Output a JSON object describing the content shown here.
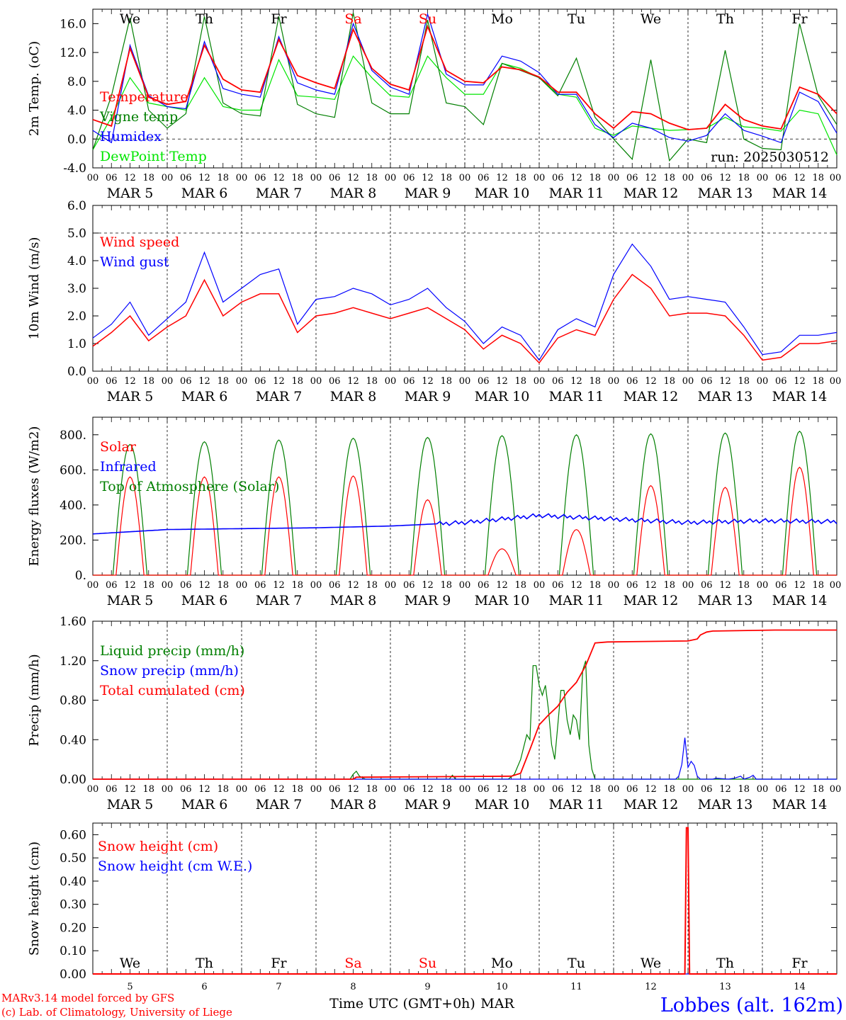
{
  "footer": {
    "model": "MARv3.14 model forced by GFS",
    "lab": "(c) Lab. of Climatology, University of Liege",
    "xtitle": "Time UTC (GMT+0h)",
    "month": "MAR",
    "station": "Lobbes (alt. 162m)"
  },
  "days": {
    "names": [
      "We",
      "Th",
      "Fr",
      "Sa",
      "Su",
      "Mo",
      "Tu",
      "We",
      "Th",
      "Fr"
    ],
    "weekend": [
      false,
      false,
      false,
      true,
      true,
      false,
      false,
      false,
      false,
      false
    ],
    "dates": [
      "MAR 5",
      "MAR 6",
      "MAR 7",
      "MAR 8",
      "MAR 9",
      "MAR 10",
      "MAR 11",
      "MAR 12",
      "MAR 13",
      "MAR 14"
    ],
    "numbers": [
      "5",
      "6",
      "7",
      "8",
      "9",
      "10",
      "11",
      "12",
      "13",
      "14"
    ],
    "hour_ticks": [
      "00",
      "06",
      "12",
      "18"
    ],
    "final_tick": "00"
  },
  "colors": {
    "red": "#ff0000",
    "green": "#007f00",
    "blue": "#0000ff",
    "lightgreen": "#00e600",
    "weekend": "#ff0000"
  },
  "chart_data": [
    {
      "type": "line",
      "ylabel": "2m Temp. (oC)",
      "ylim": [
        -4,
        18
      ],
      "yticks": [
        "-4.0",
        "0.0",
        "4.0",
        "8.0",
        "12.0",
        "16.0"
      ],
      "run": "run: 2025030512",
      "legend": [
        "Temperature",
        "Vigne temp",
        "Humidex",
        "DewPoint Temp"
      ],
      "x_hours": [
        0,
        6,
        12,
        18,
        24,
        30,
        36,
        42,
        48,
        54,
        60,
        66,
        72,
        78,
        84,
        90,
        96,
        102,
        108,
        114,
        120,
        126,
        132,
        138,
        144,
        150,
        156,
        162,
        168,
        174,
        180,
        186,
        192,
        198,
        204,
        210,
        216,
        222,
        228,
        234,
        240
      ],
      "series": [
        {
          "name": "Temperature",
          "color": "red",
          "values": [
            2.7,
            1.8,
            12.6,
            5.8,
            4.8,
            5.2,
            13,
            8.3,
            6.8,
            6.5,
            13.8,
            8.8,
            7.8,
            7,
            15.2,
            9.8,
            7.6,
            6.8,
            15.6,
            9.5,
            8,
            7.8,
            10,
            9.6,
            8.6,
            6.5,
            6.5,
            3.5,
            1.5,
            3.8,
            3.5,
            2.2,
            1.3,
            1.5,
            4.8,
            2.7,
            1.8,
            1.4,
            7.2,
            6.2,
            3.5
          ]
        },
        {
          "name": "Vigne temp",
          "color": "green",
          "values": [
            -1.5,
            6,
            16.8,
            4,
            1.5,
            3.5,
            17,
            5,
            3.5,
            3.2,
            17,
            4.8,
            3.5,
            3,
            17.5,
            5,
            3.5,
            3.5,
            16.5,
            5,
            4.5,
            2,
            10.5,
            9.5,
            8.5,
            6,
            11.2,
            3,
            0,
            -2.8,
            11,
            -3,
            0,
            -0.5,
            12.3,
            0,
            -1.3,
            -1.5,
            16,
            6,
            2
          ]
        },
        {
          "name": "Humidex",
          "color": "blue",
          "values": [
            1.2,
            -0.5,
            13,
            6,
            4.5,
            4.2,
            13.5,
            7,
            6.2,
            5.8,
            14.2,
            7.8,
            6.8,
            6.2,
            16,
            9.5,
            7.2,
            6.2,
            17.3,
            9,
            7.5,
            7.5,
            11.5,
            10.8,
            9.2,
            6.2,
            6.2,
            2,
            0.2,
            2.2,
            1.5,
            0.2,
            -0.3,
            0.5,
            3.5,
            1.2,
            0.4,
            -0.5,
            6.5,
            5.2,
            0.8
          ]
        },
        {
          "name": "DewPoint Temp",
          "color": "lightgreen",
          "values": [
            -1.5,
            3,
            8.5,
            5,
            4.5,
            4,
            8.5,
            4.5,
            4,
            4,
            11,
            6,
            5.8,
            5.5,
            11.5,
            8.5,
            6,
            5.8,
            11.5,
            8.5,
            6.2,
            6.2,
            10.5,
            9.8,
            8.5,
            6.2,
            5.8,
            1.5,
            0.5,
            1.8,
            1.5,
            1.2,
            1.3,
            1.5,
            3,
            1.7,
            1.5,
            1.1,
            4,
            3.5,
            -2.2
          ]
        }
      ]
    },
    {
      "type": "line",
      "ylabel": "10m Wind (m/s)",
      "ylim": [
        0,
        6
      ],
      "yticks": [
        "0.0",
        "1.0",
        "2.0",
        "3.0",
        "4.0",
        "5.0",
        "6.0"
      ],
      "legend": [
        "Wind speed",
        "Wind gust"
      ],
      "x_hours": [
        0,
        6,
        12,
        18,
        24,
        30,
        36,
        42,
        48,
        54,
        60,
        66,
        72,
        78,
        84,
        90,
        96,
        102,
        108,
        114,
        120,
        126,
        132,
        138,
        144,
        150,
        156,
        162,
        168,
        174,
        180,
        186,
        192,
        198,
        204,
        210,
        216,
        222,
        228,
        234,
        240
      ],
      "series": [
        {
          "name": "Wind speed",
          "color": "red",
          "values": [
            0.9,
            1.4,
            2,
            1.1,
            1.6,
            2,
            3.3,
            2,
            2.5,
            2.8,
            2.8,
            1.4,
            2,
            2.1,
            2.3,
            2.1,
            1.9,
            2.1,
            2.3,
            1.9,
            1.5,
            0.8,
            1.3,
            1,
            0.3,
            1.2,
            1.5,
            1.3,
            2.6,
            3.5,
            3,
            2,
            2.1,
            2.1,
            2,
            1.3,
            0.4,
            0.5,
            1,
            1,
            1.1
          ]
        },
        {
          "name": "Wind gust",
          "color": "blue",
          "values": [
            1.2,
            1.7,
            2.5,
            1.3,
            1.9,
            2.5,
            4.3,
            2.5,
            3,
            3.5,
            3.7,
            1.7,
            2.6,
            2.7,
            3,
            2.8,
            2.4,
            2.6,
            3,
            2.3,
            1.8,
            1,
            1.6,
            1.3,
            0.4,
            1.5,
            1.9,
            1.6,
            3.5,
            4.6,
            3.8,
            2.6,
            2.7,
            2.6,
            2.5,
            1.6,
            0.6,
            0.7,
            1.3,
            1.3,
            1.4
          ]
        }
      ]
    },
    {
      "type": "line",
      "ylabel": "Energy fluxes (W/m2)",
      "ylim": [
        0,
        900
      ],
      "yticks": [
        "0.",
        "200.",
        "400.",
        "600.",
        "800."
      ],
      "legend": [
        "Solar",
        "Infrared",
        "Top of Atmosphere (Solar)"
      ],
      "peaks": {
        "Solar": [
          560,
          560,
          560,
          565,
          430,
          150,
          260,
          510,
          500,
          615
        ],
        "Top of Atmosphere (Solar)": [
          745,
          760,
          770,
          780,
          785,
          795,
          800,
          805,
          810,
          820
        ]
      },
      "infrared": {
        "name": "Infrared",
        "values": [
          235,
          260,
          265,
          270,
          280,
          300,
          340,
          320,
          300,
          310,
          305
        ]
      }
    },
    {
      "type": "line",
      "ylabel": "Precip (mm/h)",
      "ylim": [
        0,
        1.6
      ],
      "yticks": [
        "0.00",
        "0.40",
        "0.80",
        "1.20",
        "1.60"
      ],
      "legend": [
        "Liquid precip (mm/h)",
        "Snow precip (mm/h)",
        "Total cumulated (cm)"
      ],
      "series": [
        {
          "name": "Total cumulated (cm)",
          "color": "red",
          "points": [
            [
              0,
              0
            ],
            [
              84,
              0
            ],
            [
              85,
              0.02
            ],
            [
              135,
              0.03
            ],
            [
              138,
              0.06
            ],
            [
              141,
              0.3
            ],
            [
              144,
              0.55
            ],
            [
              147,
              0.65
            ],
            [
              150,
              0.74
            ],
            [
              153,
              0.88
            ],
            [
              156,
              0.98
            ],
            [
              159,
              1.15
            ],
            [
              162,
              1.38
            ],
            [
              166,
              1.39
            ],
            [
              192,
              1.4
            ],
            [
              195,
              1.42
            ],
            [
              196,
              1.46
            ],
            [
              198,
              1.49
            ],
            [
              200,
              1.5
            ],
            [
              220,
              1.51
            ],
            [
              240,
              1.51
            ]
          ]
        },
        {
          "name": "Liquid precip (mm/h)",
          "color": "green",
          "points": [
            [
              0,
              0
            ],
            [
              83,
              0
            ],
            [
              84,
              0.05
            ],
            [
              85,
              0.08
            ],
            [
              86,
              0.03
            ],
            [
              88,
              0
            ],
            [
              115,
              0
            ],
            [
              116,
              0.04
            ],
            [
              117,
              0
            ],
            [
              134,
              0
            ],
            [
              136,
              0.05
            ],
            [
              138,
              0.2
            ],
            [
              140,
              0.45
            ],
            [
              141,
              0.4
            ],
            [
              142,
              1.15
            ],
            [
              143,
              1.15
            ],
            [
              144,
              0.95
            ],
            [
              145,
              0.85
            ],
            [
              146,
              0.95
            ],
            [
              147,
              0.7
            ],
            [
              148,
              0.35
            ],
            [
              149,
              0.2
            ],
            [
              150,
              0.55
            ],
            [
              151,
              0.9
            ],
            [
              152,
              0.9
            ],
            [
              153,
              0.6
            ],
            [
              154,
              0.45
            ],
            [
              155,
              0.65
            ],
            [
              156,
              0.6
            ],
            [
              157,
              0.4
            ],
            [
              158,
              1.1
            ],
            [
              159,
              1.2
            ],
            [
              160,
              0.35
            ],
            [
              161,
              0.1
            ],
            [
              162,
              0
            ],
            [
              240,
              0
            ]
          ]
        },
        {
          "name": "Snow precip (mm/h)",
          "color": "blue",
          "points": [
            [
              0,
              0
            ],
            [
              188,
              0
            ],
            [
              189,
              0.03
            ],
            [
              190,
              0.15
            ],
            [
              191,
              0.42
            ],
            [
              192,
              0.12
            ],
            [
              193,
              0.18
            ],
            [
              194,
              0.14
            ],
            [
              195,
              0.03
            ],
            [
              196,
              0
            ],
            [
              200,
              0
            ],
            [
              201,
              0.01
            ],
            [
              205,
              0
            ],
            [
              207,
              0.01
            ],
            [
              209,
              0.03
            ],
            [
              210,
              0
            ],
            [
              212,
              0.02
            ],
            [
              213,
              0.04
            ],
            [
              214,
              0
            ],
            [
              240,
              0
            ]
          ]
        }
      ]
    },
    {
      "type": "line",
      "ylabel": "Snow height (cm)",
      "ylim": [
        0,
        0.65
      ],
      "yticks": [
        "0.00",
        "0.10",
        "0.20",
        "0.30",
        "0.40",
        "0.50",
        "0.60"
      ],
      "legend": [
        "Snow height (cm)",
        "Snow height (cm W.E.)"
      ],
      "series": [
        {
          "name": "Snow height (cm)",
          "color": "red",
          "points": [
            [
              0,
              0
            ],
            [
              191,
              0
            ],
            [
              191.5,
              0.63
            ],
            [
              192,
              0.63
            ],
            [
              192.5,
              0
            ],
            [
              240,
              0
            ]
          ]
        },
        {
          "name": "Snow height (cm W.E.)",
          "color": "blue",
          "points": [
            [
              0,
              0
            ],
            [
              240,
              0
            ]
          ]
        }
      ]
    }
  ]
}
